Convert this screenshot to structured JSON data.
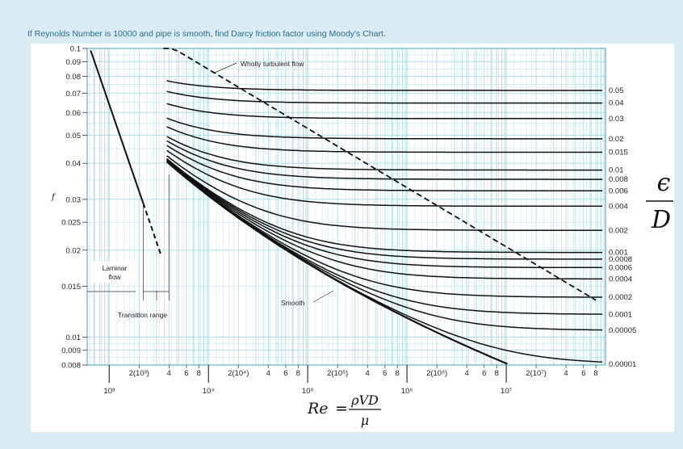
{
  "question": "If Reynolds Number is 10000 and pipe is smooth, find Darcy friction factor using Moody's Chart.",
  "colors": {
    "background": "#d9ecf4",
    "grid": "#a8dbe6",
    "frame": "#5fb3c8",
    "curve": "#111111"
  },
  "chart_data": {
    "type": "line",
    "x_scale": "log",
    "y_scale": "log",
    "xlim": [
      600,
      100000000
    ],
    "ylim": [
      0.008,
      0.1
    ],
    "grid": true,
    "xlabel_prefix": "Re",
    "xlabel_eq": "=",
    "xlabel_num": "ρVD",
    "xlabel_den": "μ",
    "ylabel": "f",
    "right_label_num": "ϵ",
    "right_label_den": "D",
    "y_ticks": [
      {
        "value": 0.1,
        "label": "0.1"
      },
      {
        "value": 0.09,
        "label": "0.09"
      },
      {
        "value": 0.08,
        "label": "0.08"
      },
      {
        "value": 0.07,
        "label": "0.07"
      },
      {
        "value": 0.06,
        "label": "0.06"
      },
      {
        "value": 0.05,
        "label": "0.05"
      },
      {
        "value": 0.04,
        "label": "0.04"
      },
      {
        "value": 0.03,
        "label": "0.03"
      },
      {
        "value": 0.025,
        "label": "0.025"
      },
      {
        "value": 0.02,
        "label": "0.02"
      },
      {
        "value": 0.015,
        "label": "0.015"
      },
      {
        "value": 0.01,
        "label": "0.01"
      },
      {
        "value": 0.009,
        "label": "0.009"
      },
      {
        "value": 0.008,
        "label": "0.008"
      }
    ],
    "x_major_ticks": [
      {
        "value": 1000,
        "label": "10³"
      },
      {
        "value": 10000,
        "label": "10⁴"
      },
      {
        "value": 100000,
        "label": "10⁵"
      },
      {
        "value": 1000000,
        "label": "10⁶"
      },
      {
        "value": 10000000,
        "label": "10⁷"
      }
    ],
    "x_minor_tick_labels": [
      {
        "value": 2000,
        "label": "2(10³)"
      },
      {
        "value": 4000,
        "label": "4"
      },
      {
        "value": 6000,
        "label": "6"
      },
      {
        "value": 8000,
        "label": "8"
      },
      {
        "value": 20000,
        "label": "2(10⁴)"
      },
      {
        "value": 40000,
        "label": "4"
      },
      {
        "value": 60000,
        "label": "6"
      },
      {
        "value": 80000,
        "label": "8"
      },
      {
        "value": 200000,
        "label": "2(10⁵)"
      },
      {
        "value": 400000,
        "label": "4"
      },
      {
        "value": 600000,
        "label": "6"
      },
      {
        "value": 800000,
        "label": "8"
      },
      {
        "value": 2000000,
        "label": "2(10⁶)"
      },
      {
        "value": 4000000,
        "label": "4"
      },
      {
        "value": 6000000,
        "label": "6"
      },
      {
        "value": 8000000,
        "label": "8"
      },
      {
        "value": 20000000,
        "label": "2(10⁷)"
      },
      {
        "value": 40000000,
        "label": "4"
      },
      {
        "value": 60000000,
        "label": "6"
      },
      {
        "value": 80000000,
        "label": "8"
      }
    ],
    "roughness_labels": [
      {
        "value": 0.05,
        "label": "0.05"
      },
      {
        "value": 0.04,
        "label": "0.04"
      },
      {
        "value": 0.03,
        "label": "0.03"
      },
      {
        "value": 0.02,
        "label": "0.02"
      },
      {
        "value": 0.015,
        "label": "0.015"
      },
      {
        "value": 0.01,
        "label": "0.01"
      },
      {
        "value": 0.008,
        "label": "0.008"
      },
      {
        "value": 0.006,
        "label": "0.006"
      },
      {
        "value": 0.004,
        "label": "0.004"
      },
      {
        "value": 0.002,
        "label": "0.002"
      },
      {
        "value": 0.001,
        "label": "0.001"
      },
      {
        "value": 0.0008,
        "label": "0.0008"
      },
      {
        "value": 0.0006,
        "label": "0.0006"
      },
      {
        "value": 0.0004,
        "label": "0.0004"
      },
      {
        "value": 0.0002,
        "label": "0.0002"
      },
      {
        "value": 0.0001,
        "label": "0.0001"
      },
      {
        "value": 5e-05,
        "label": "0.00005"
      },
      {
        "value": 1e-05,
        "label": "0.00001"
      }
    ],
    "annotations": {
      "wholly_turbulent": "Wholly turbulent flow",
      "laminar": [
        "Laminar",
        "flow"
      ],
      "transition": "Transition range",
      "smooth": "Smooth"
    },
    "laminar_curve": {
      "x_start": 650,
      "x_end": 3300,
      "formula": "f = 64/Re"
    },
    "smooth_curve": {
      "x_start": 3800,
      "x_end": 20000000
    },
    "wholly_turbulent_boundary": {
      "x_start": 3500,
      "x_end": 80000000
    }
  }
}
